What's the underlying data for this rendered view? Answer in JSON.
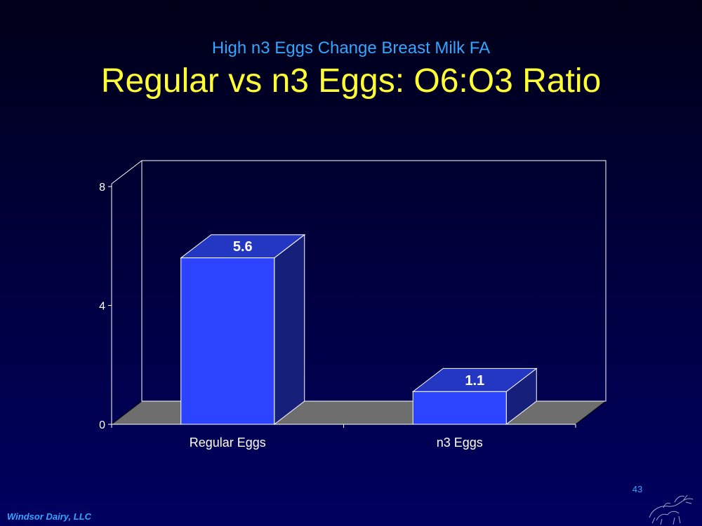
{
  "slide": {
    "subtitle": "High n3 Eggs Change Breast Milk FA",
    "title": "Regular vs n3 Eggs: O6:O3 Ratio",
    "number": "43",
    "footer": "Windsor Dairy, LLC"
  },
  "colors": {
    "bar_front": "#2c44ff",
    "bar_top": "#2437c2",
    "bar_side": "#16207a",
    "floor": "#6e6e6e",
    "axis": "#ffffff",
    "subtitle": "#33a6ff",
    "title": "#ffff33"
  },
  "icons": {
    "logo": "cattle-sketch-icon"
  },
  "chart_data": {
    "type": "bar",
    "style": "3d",
    "title": "",
    "xlabel": "",
    "ylabel": "",
    "categories": [
      "Regular Eggs",
      "n3 Eggs"
    ],
    "values": [
      5.6,
      1.1
    ],
    "data_labels": [
      "5.6",
      "1.1"
    ],
    "yticks": [
      0,
      4,
      8
    ],
    "ytick_labels": [
      "0",
      "4",
      "8"
    ],
    "ylim": [
      0,
      8
    ],
    "grid": false,
    "legend": "none"
  }
}
